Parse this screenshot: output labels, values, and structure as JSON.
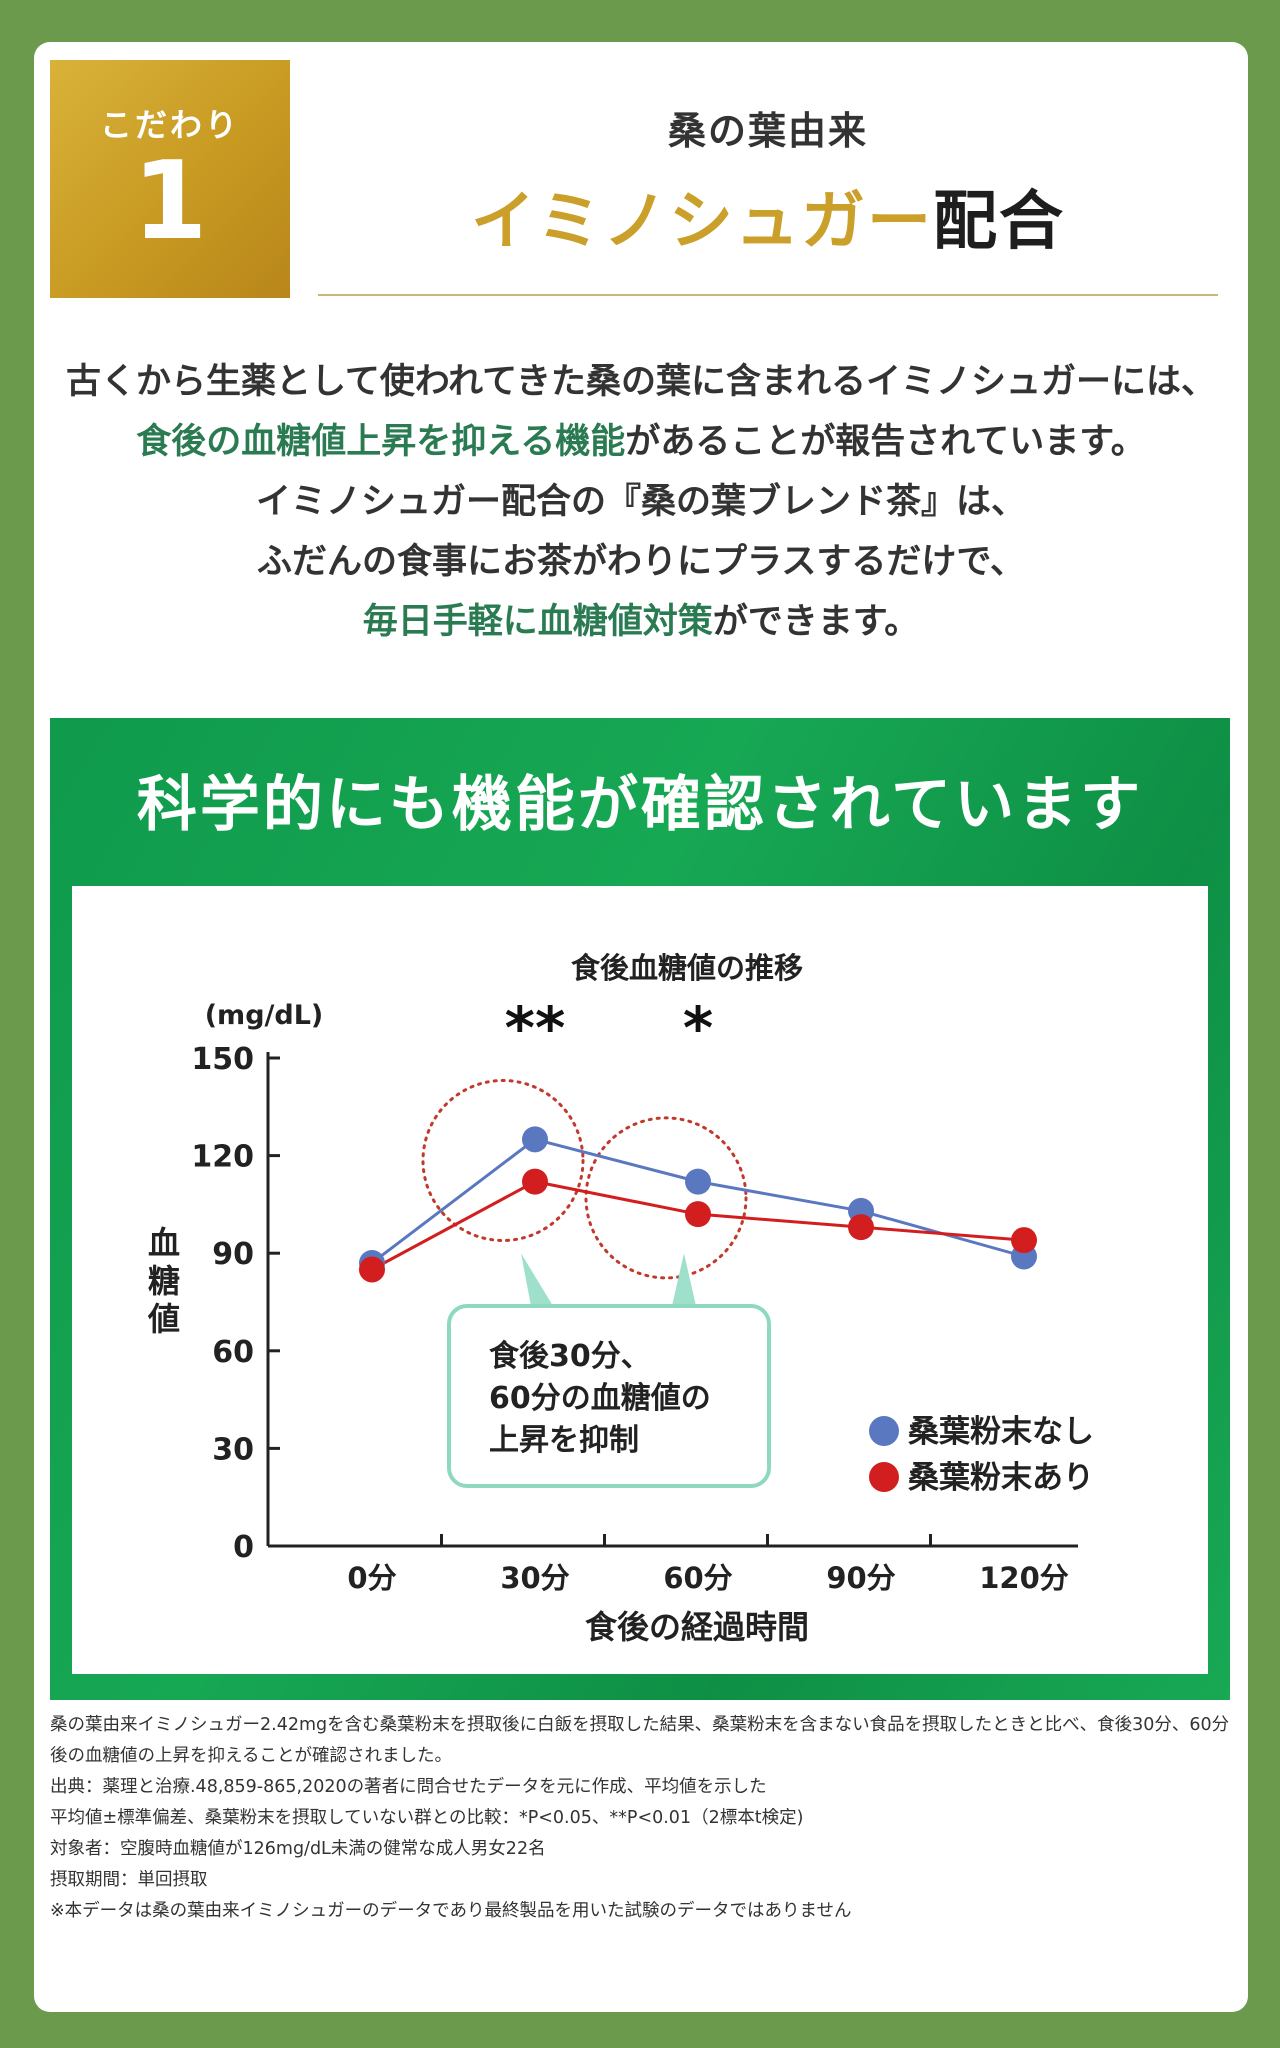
{
  "badge": {
    "label": "こだわり",
    "number": "1"
  },
  "header": {
    "subtitle": "桑の葉由来",
    "title_highlight": "イミノシュガー",
    "title_rest": "配合"
  },
  "intro": {
    "line1": "古くから生薬として使われてきた桑の葉に含まれるイミノシュガーには、",
    "line2_hl": "食後の血糖値上昇を抑える機能",
    "line2_rest": "があることが報告されています。",
    "line3": "イミノシュガー配合の『桑の葉ブレンド茶』は、",
    "line4": "ふだんの食事にお茶がわりにプラスするだけで、",
    "line5_hl": "毎日手軽に血糖値対策",
    "line5_rest": "ができます。"
  },
  "section": {
    "title": "科学的にも機能が確認されています"
  },
  "chart_data": {
    "type": "line",
    "title": "食後血糖値の推移",
    "unit": "(mg/dL)",
    "ylabel": "血糖値",
    "xlabel": "食後の経過時間",
    "categories": [
      "0分",
      "30分",
      "60分",
      "90分",
      "120分"
    ],
    "yticks": [
      0,
      30,
      60,
      90,
      120,
      150
    ],
    "ylim": [
      0,
      150
    ],
    "series": [
      {
        "name": "桑葉粉末なし",
        "color": "#5a78c0",
        "values": [
          87,
          125,
          112,
          103,
          89
        ]
      },
      {
        "name": "桑葉粉末あり",
        "color": "#d21e1e",
        "values": [
          85,
          112,
          102,
          98,
          94
        ]
      }
    ],
    "significance": [
      "",
      "**",
      "*",
      "",
      ""
    ],
    "annotation": [
      "食後30分、",
      "60分の血糖値の",
      "上昇を抑制"
    ],
    "legend_position": "bottom-right"
  },
  "notes": [
    "桑の葉由来イミノシュガー2.42mgを含む桑葉粉末を摂取後に白飯を摂取した結果、桑葉粉末を含まない食品を摂取したときと比べ、食後30分、60分後の血糖値の上昇を抑えることが確認されました。",
    "出典：薬理と治療.48,859-865,2020の著者に問合せたデータを元に作成、平均値を示した",
    "平均値±標準偏差、桑葉粉末を摂取していない群との比較：*P<0.05、**P<0.01（2標本t検定)",
    "対象者：空腹時血糖値が126mg/dL未満の健常な成人男女22名",
    "摂取期間：単回摂取",
    "※本データは桑の葉由来イミノシュガーのデータであり最終製品を用いた試験のデータではありません"
  ]
}
